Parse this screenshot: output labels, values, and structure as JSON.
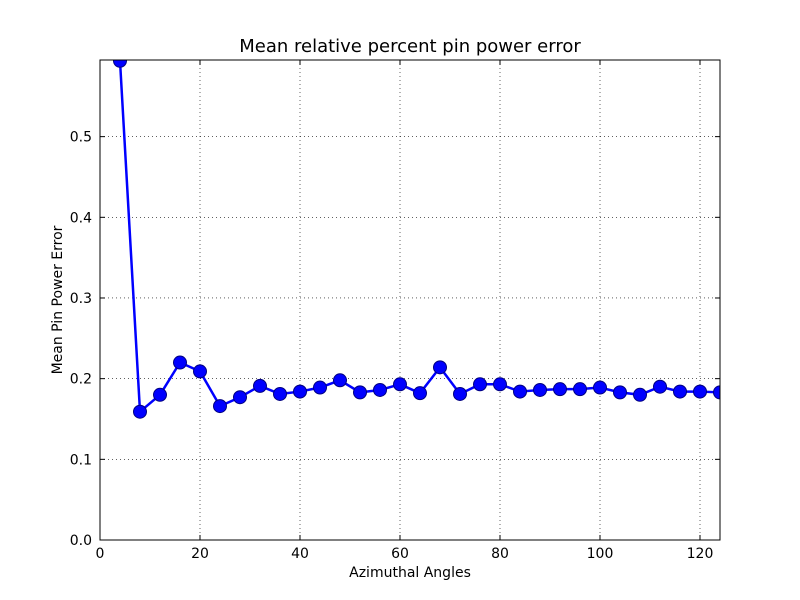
{
  "chart_data": {
    "type": "line",
    "title": "Mean relative percent pin power error",
    "xlabel": "Azimuthal Angles",
    "ylabel": "Mean Pin Power Error",
    "xlim": [
      0,
      124
    ],
    "ylim": [
      0.0,
      0.595
    ],
    "xticks": [
      0,
      20,
      40,
      60,
      80,
      100,
      120
    ],
    "xtick_labels": [
      "0",
      "20",
      "40",
      "60",
      "80",
      "100",
      "120"
    ],
    "yticks": [
      0.0,
      0.1,
      0.2,
      0.3,
      0.4,
      0.5
    ],
    "ytick_labels": [
      "0.0",
      "0.1",
      "0.2",
      "0.3",
      "0.4",
      "0.5"
    ],
    "grid": true,
    "series": [
      {
        "color": "#0000ff",
        "marker": "circle",
        "x": [
          4,
          8,
          12,
          16,
          20,
          24,
          28,
          32,
          36,
          40,
          44,
          48,
          52,
          56,
          60,
          64,
          68,
          72,
          76,
          80,
          84,
          88,
          92,
          96,
          100,
          104,
          108,
          112,
          116,
          120,
          124
        ],
        "y": [
          0.594,
          0.159,
          0.18,
          0.22,
          0.209,
          0.166,
          0.177,
          0.191,
          0.181,
          0.184,
          0.189,
          0.198,
          0.183,
          0.186,
          0.193,
          0.182,
          0.214,
          0.181,
          0.193,
          0.193,
          0.184,
          0.186,
          0.187,
          0.187,
          0.189,
          0.183,
          0.18,
          0.19,
          0.184,
          0.184,
          0.183
        ]
      }
    ]
  }
}
